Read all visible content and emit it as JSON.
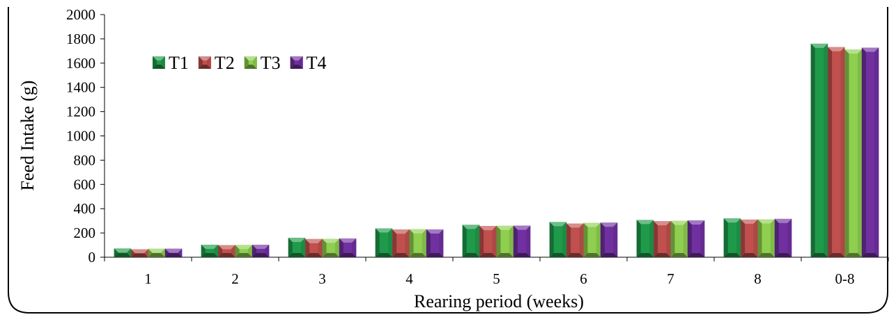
{
  "chart_data": {
    "type": "bar",
    "title": "",
    "xlabel": "Rearing period (weeks)",
    "ylabel": "Feed Intake (g)",
    "ylim": [
      0,
      2000
    ],
    "yticks": [
      0,
      200,
      400,
      600,
      800,
      1000,
      1200,
      1400,
      1600,
      1800,
      2000
    ],
    "categories": [
      "1",
      "2",
      "3",
      "4",
      "5",
      "6",
      "7",
      "8",
      "0-8"
    ],
    "series": [
      {
        "name": "T1",
        "color": "#1f9a4a",
        "values": [
          72,
          103,
          160,
          238,
          267,
          290,
          307,
          320,
          1760
        ]
      },
      {
        "name": "T2",
        "color": "#c0504d",
        "values": [
          65,
          100,
          150,
          228,
          257,
          278,
          297,
          310,
          1732
        ]
      },
      {
        "name": "T3",
        "color": "#8fcf4f",
        "values": [
          70,
          101,
          152,
          231,
          259,
          283,
          300,
          312,
          1712
        ]
      },
      {
        "name": "T4",
        "color": "#7030a0",
        "values": [
          70,
          103,
          155,
          229,
          260,
          285,
          304,
          316,
          1727
        ]
      }
    ],
    "grid": false,
    "legend_position": "top-left"
  }
}
